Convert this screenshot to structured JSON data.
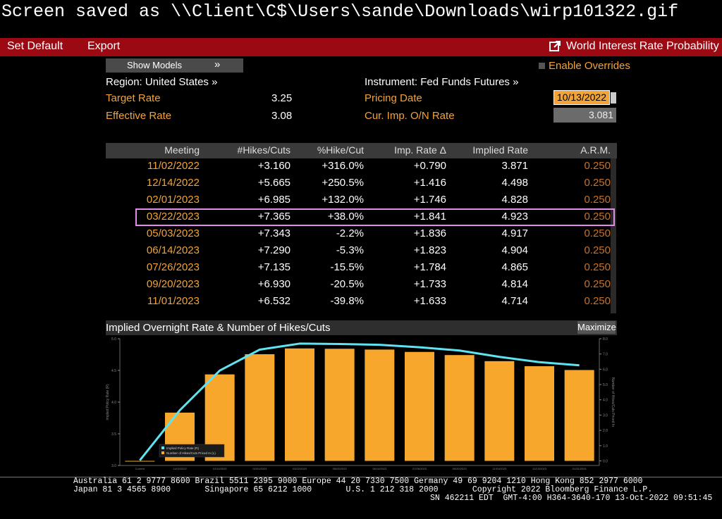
{
  "header": {
    "status": "Screen saved as \\\\Client\\C$\\Users\\sande\\Downloads\\wirp101322.gif",
    "menu": [
      "Set Default",
      "Export"
    ],
    "screen_title": "World Interest Rate Probability"
  },
  "controls": {
    "show_models": "Show Models",
    "expand": "»",
    "enable_overrides": "Enable Overrides"
  },
  "left_info": {
    "region": "Region: United States »",
    "rows": [
      [
        "Target Rate",
        "3.25"
      ],
      [
        "Effective Rate",
        "3.08"
      ]
    ]
  },
  "right_info": {
    "instrument": "Instrument: Fed Funds Futures »",
    "rows": [
      [
        "Pricing Date",
        "10/13/2022"
      ],
      [
        "Cur. Imp. O/N Rate",
        "3.081"
      ]
    ]
  },
  "table": {
    "columns": [
      "Meeting",
      "#Hikes/Cuts",
      "%Hike/Cut",
      "Imp. Rate Δ",
      "Implied Rate",
      "A.R.M."
    ],
    "rows": [
      [
        "11/02/2022",
        "+3.160",
        "+316.0%",
        "+0.790",
        "3.871",
        "0.250"
      ],
      [
        "12/14/2022",
        "+5.665",
        "+250.5%",
        "+1.416",
        "4.498",
        "0.250"
      ],
      [
        "02/01/2023",
        "+6.985",
        "+132.0%",
        "+1.746",
        "4.828",
        "0.250"
      ],
      [
        "03/22/2023",
        "+7.365",
        "+38.0%",
        "+1.841",
        "4.923",
        "0.250"
      ],
      [
        "05/03/2023",
        "+7.343",
        "-2.2%",
        "+1.836",
        "4.917",
        "0.250"
      ],
      [
        "06/14/2023",
        "+7.290",
        "-5.3%",
        "+1.823",
        "4.904",
        "0.250"
      ],
      [
        "07/26/2023",
        "+7.135",
        "-15.5%",
        "+1.784",
        "4.865",
        "0.250"
      ],
      [
        "09/20/2023",
        "+6.930",
        "-20.5%",
        "+1.733",
        "4.814",
        "0.250"
      ],
      [
        "11/01/2023",
        "+6.532",
        "-39.8%",
        "+1.633",
        "4.714",
        "0.250"
      ]
    ]
  },
  "chart_panel": {
    "title": "Implied Overnight Rate & Number of Hikes/Cuts",
    "button": "Maximize"
  },
  "chart_data": {
    "type": "combo",
    "categories": [
      "Current",
      "11/02/2022",
      "12/14/2022",
      "02/01/2023",
      "03/22/2023",
      "05/03/2023",
      "06/14/2023",
      "07/26/2023",
      "09/20/2023",
      "11/01/2023",
      "12/13/2023",
      "01/31/2024"
    ],
    "y_label": "Implied Policy Rate (R)",
    "y2_label": "Number of Hikes/Cuts Priced In",
    "series": [
      {
        "name": "Implied Policy Rate (R)",
        "color": "#5fe3f2",
        "kind": "line",
        "values": [
          3.081,
          3.871,
          4.498,
          4.828,
          4.923,
          4.917,
          4.904,
          4.865,
          4.814,
          4.714,
          4.63,
          4.58
        ]
      },
      {
        "name": "Number of Hikes/Cuts Priced In (L)",
        "color": "#f7a82c",
        "kind": "bar",
        "axis": "y2",
        "values": [
          0,
          3.16,
          5.665,
          6.985,
          7.365,
          7.343,
          7.29,
          7.135,
          6.93,
          6.532,
          6.2,
          5.95
        ]
      }
    ],
    "ylim": [
      3.0,
      5.0
    ],
    "yticks": [
      {
        "value": 3,
        "label": "3.0"
      },
      {
        "value": 3.5,
        "label": "3.5"
      },
      {
        "value": 4,
        "label": "4.0"
      },
      {
        "value": 4.5,
        "label": "4.5"
      },
      {
        "value": 5,
        "label": "5.0"
      }
    ],
    "y2lim": [
      -0.3,
      8.0
    ],
    "y2ticks": [
      {
        "value": 0,
        "label": "0.0"
      },
      {
        "value": 1,
        "label": "1.0"
      },
      {
        "value": 2,
        "label": "2.0"
      },
      {
        "value": 3,
        "label": "3.0"
      },
      {
        "value": 4,
        "label": "4.0"
      },
      {
        "value": 5,
        "label": "5.0"
      },
      {
        "value": 6,
        "label": "6.0"
      },
      {
        "value": 7,
        "label": "7.0"
      },
      {
        "value": 8,
        "label": "8.0"
      }
    ]
  },
  "footer": {
    "lines": [
      "Australia 61 2 9777 8600 Brazil 5511 2395 9000 Europe 44 20 7330 7500 Germany 49 69 9204 1210 Hong Kong 852 2977 6000",
      "Japan 81 3 4565 8900       Singapore 65 6212 1000       U.S. 1 212 318 2000       Copyright 2022 Bloomberg Finance L.P.",
      "SN 462211 EDT  GMT-4:00 H364-3640-170 13-Oct-2022 09:51:45"
    ]
  }
}
